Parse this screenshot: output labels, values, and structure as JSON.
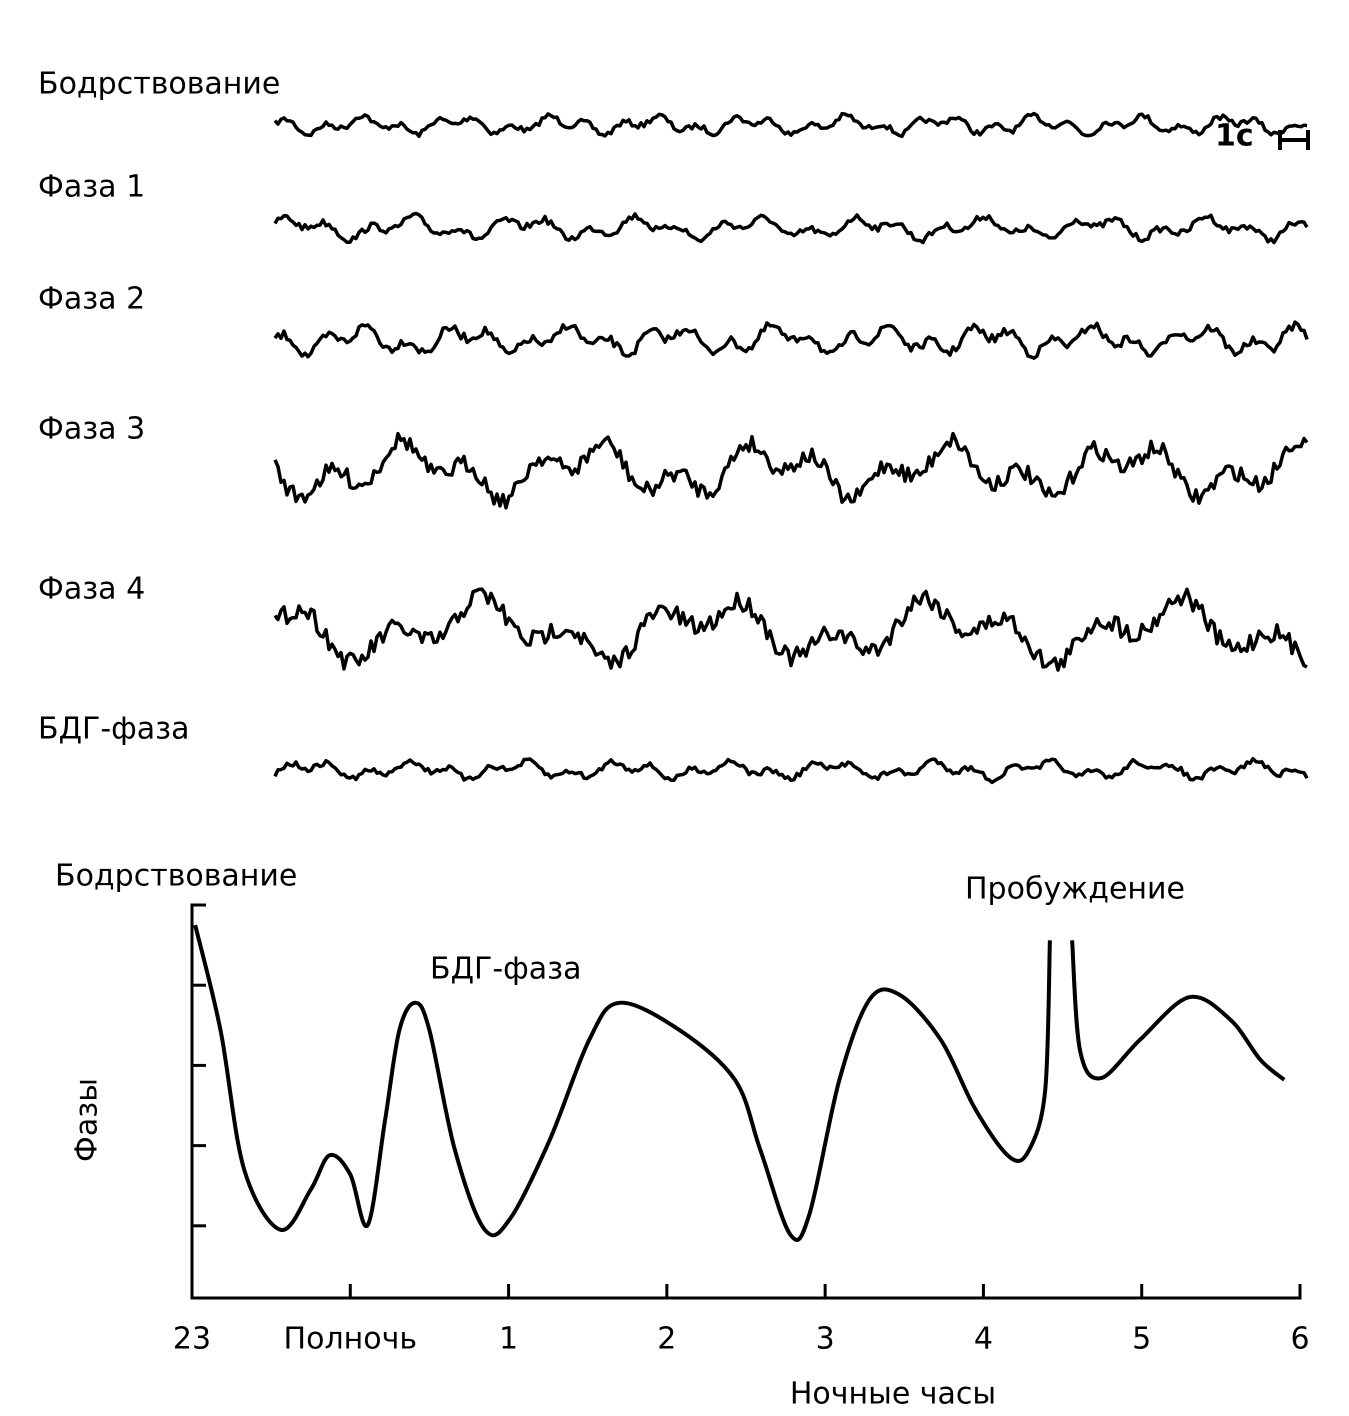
{
  "eeg": {
    "labels": [
      "Бодрствование",
      "Фаза 1",
      "Фаза 2",
      "Фаза 3",
      "Фаза 4",
      "БДГ-фаза"
    ],
    "scale_label": "1с"
  },
  "chart_data": {
    "type": "line",
    "annotations": [
      "Бодрствование",
      "БДГ-фаза",
      "Пробуждение"
    ],
    "x_label": "Ночные часы",
    "y_label": "Фазы",
    "xlim": [
      0,
      7
    ],
    "ylim": [
      4.9,
      0
    ],
    "xticks": [
      {
        "value": 0,
        "label": "23"
      },
      {
        "value": 1,
        "label": "Полночь"
      },
      {
        "value": 2,
        "label": "1"
      },
      {
        "value": 3,
        "label": "2"
      },
      {
        "value": 4,
        "label": "3"
      },
      {
        "value": 5,
        "label": "4"
      },
      {
        "value": 6,
        "label": "5"
      },
      {
        "value": 7,
        "label": "6"
      }
    ],
    "yticks": [
      0,
      1,
      2,
      3,
      4
    ],
    "series": [
      {
        "color": "#000000",
        "x": [
          0.02,
          0.18,
          0.33,
          0.56,
          0.75,
          0.87,
          1.0,
          1.11,
          1.22,
          1.31,
          1.41,
          1.5,
          1.66,
          1.85,
          2.01,
          2.26,
          2.51,
          2.7,
          3.08,
          3.43,
          3.59,
          3.78,
          3.9,
          4.09,
          4.28,
          4.47,
          4.73,
          4.95,
          5.17,
          5.29,
          5.39,
          5.42,
          null,
          5.56,
          5.61,
          5.74,
          5.99,
          6.3,
          6.56,
          6.75,
          6.9
        ],
        "values": [
          0.25,
          1.56,
          3.3,
          4.05,
          3.55,
          3.12,
          3.36,
          3.99,
          2.68,
          1.56,
          1.22,
          1.56,
          3.05,
          4.05,
          3.91,
          2.93,
          1.68,
          1.22,
          1.56,
          2.18,
          3.05,
          4.11,
          3.86,
          2.18,
          1.18,
          1.12,
          1.68,
          2.55,
          3.15,
          3.05,
          2.31,
          0.44,
          null,
          0.44,
          1.81,
          2.16,
          1.68,
          1.15,
          1.43,
          1.93,
          2.18
        ]
      }
    ]
  }
}
